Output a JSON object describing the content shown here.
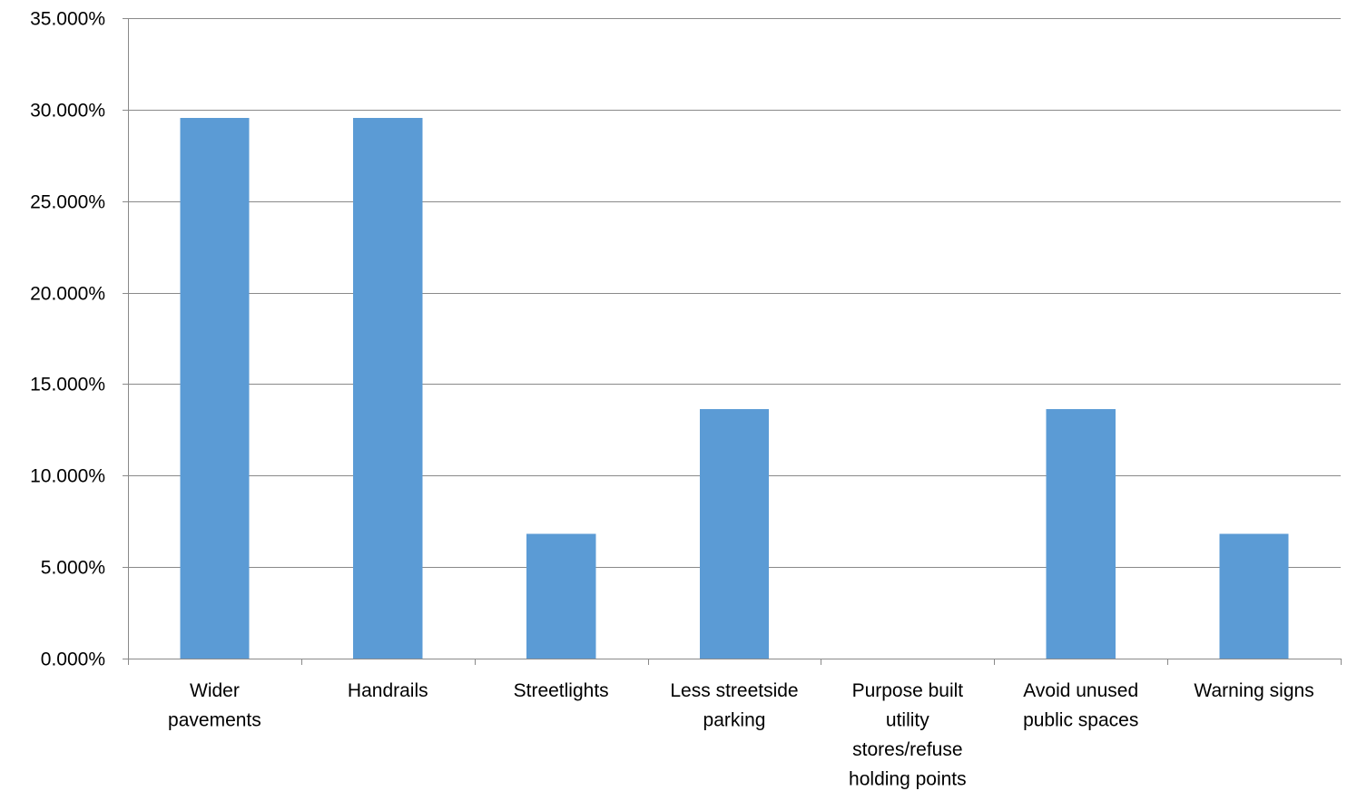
{
  "chart_data": {
    "type": "bar",
    "title": "",
    "xlabel": "",
    "ylabel": "",
    "categories": [
      [
        "Wider",
        "pavements"
      ],
      [
        "Handrails"
      ],
      [
        "Streetlights"
      ],
      [
        "Less streetside",
        "parking"
      ],
      [
        "Purpose built",
        "utility",
        "stores/refuse",
        "holding points"
      ],
      [
        "Avoid unused",
        "public spaces"
      ],
      [
        "Warning signs"
      ]
    ],
    "values": [
      29.545,
      29.545,
      6.818,
      13.636,
      0,
      13.636,
      6.818
    ],
    "ylim": [
      0,
      35
    ],
    "yticks": [
      0,
      5,
      10,
      15,
      20,
      25,
      30,
      35
    ],
    "ytick_labels": [
      "0.000%",
      "5.000%",
      "10.000%",
      "15.000%",
      "20.000%",
      "25.000%",
      "30.000%",
      "35.000%"
    ],
    "grid": true,
    "legend": "none",
    "colors": {
      "bar": "#5b9bd5",
      "grid": "#8a8a8a",
      "text": "#000000"
    }
  }
}
